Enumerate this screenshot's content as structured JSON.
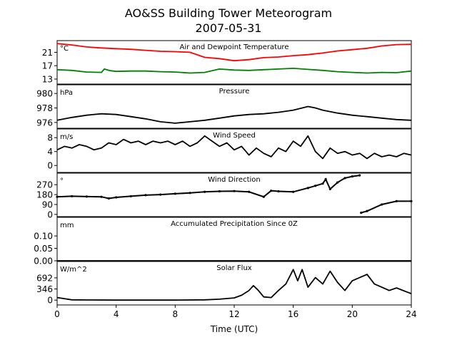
{
  "title": "AO&SS Building Tower Meteorogram",
  "subtitle": "2007-05-31",
  "xlabel": "Time (UTC)",
  "chart_data": [
    {
      "type": "line",
      "title": "Air and Dewpoint Temperature",
      "unit": "°C",
      "ylim": [
        11.5,
        24.5
      ],
      "yticks": [
        13,
        17,
        21
      ],
      "series": [
        {
          "color": "#ff0000",
          "points": [
            [
              0,
              23.6
            ],
            [
              1,
              23.2
            ],
            [
              2,
              22.6
            ],
            [
              3,
              22.3
            ],
            [
              4,
              22.1
            ],
            [
              5,
              21.9
            ],
            [
              6,
              21.6
            ],
            [
              7,
              21.3
            ],
            [
              8,
              21.2
            ],
            [
              9,
              21.0
            ],
            [
              10,
              19.5
            ],
            [
              11,
              19.1
            ],
            [
              12,
              18.5
            ],
            [
              13,
              18.8
            ],
            [
              14,
              19.4
            ],
            [
              15,
              19.6
            ],
            [
              16,
              20.0
            ],
            [
              17,
              20.3
            ],
            [
              18,
              20.8
            ],
            [
              19,
              21.4
            ],
            [
              20,
              21.8
            ],
            [
              21,
              22.2
            ],
            [
              22,
              22.9
            ],
            [
              23,
              23.3
            ],
            [
              24,
              23.4
            ]
          ]
        },
        {
          "color": "#008000",
          "points": [
            [
              0,
              15.8
            ],
            [
              1,
              15.6
            ],
            [
              2,
              15.1
            ],
            [
              3,
              15.0
            ],
            [
              3.2,
              16.0
            ],
            [
              3.6,
              15.5
            ],
            [
              4,
              15.3
            ],
            [
              5,
              15.4
            ],
            [
              6,
              15.4
            ],
            [
              7,
              15.2
            ],
            [
              8,
              15.1
            ],
            [
              9,
              14.8
            ],
            [
              10,
              15.0
            ],
            [
              11,
              16.0
            ],
            [
              12,
              15.7
            ],
            [
              13,
              15.6
            ],
            [
              14,
              15.8
            ],
            [
              15,
              16.0
            ],
            [
              16,
              16.2
            ],
            [
              17,
              15.9
            ],
            [
              18,
              15.6
            ],
            [
              19,
              15.2
            ],
            [
              20,
              15.0
            ],
            [
              21,
              14.8
            ],
            [
              22,
              15.0
            ],
            [
              23,
              14.9
            ],
            [
              24,
              15.4
            ]
          ]
        }
      ]
    },
    {
      "type": "line",
      "title": "Pressure",
      "unit": "hPa",
      "ylim": [
        975.2,
        981.2
      ],
      "yticks": [
        976,
        978,
        980
      ],
      "series": [
        {
          "color": "#000000",
          "points": [
            [
              0,
              976.3
            ],
            [
              1,
              976.7
            ],
            [
              2,
              977.0
            ],
            [
              3,
              977.2
            ],
            [
              4,
              977.1
            ],
            [
              5,
              976.8
            ],
            [
              6,
              976.5
            ],
            [
              7,
              976.1
            ],
            [
              8,
              975.9
            ],
            [
              9,
              976.1
            ],
            [
              10,
              976.3
            ],
            [
              11,
              976.6
            ],
            [
              12,
              976.9
            ],
            [
              13,
              977.1
            ],
            [
              14,
              977.2
            ],
            [
              15,
              977.4
            ],
            [
              16,
              977.7
            ],
            [
              17,
              978.2
            ],
            [
              17.5,
              978.0
            ],
            [
              18,
              977.7
            ],
            [
              19,
              977.3
            ],
            [
              20,
              977.0
            ],
            [
              21,
              976.8
            ],
            [
              22,
              976.6
            ],
            [
              23,
              976.4
            ],
            [
              24,
              976.3
            ]
          ]
        }
      ]
    },
    {
      "type": "line",
      "title": "Wind Speed",
      "unit": "m/s",
      "ylim": [
        -2,
        10.5
      ],
      "yticks": [
        0,
        4,
        8
      ],
      "series": [
        {
          "color": "#000000",
          "points": [
            [
              0,
              4.5
            ],
            [
              0.5,
              5.5
            ],
            [
              1,
              5.0
            ],
            [
              1.5,
              6.0
            ],
            [
              2,
              5.5
            ],
            [
              2.5,
              4.5
            ],
            [
              3,
              5.0
            ],
            [
              3.5,
              6.5
            ],
            [
              4,
              6.0
            ],
            [
              4.5,
              7.5
            ],
            [
              5,
              6.5
            ],
            [
              5.5,
              7.0
            ],
            [
              6,
              6.0
            ],
            [
              6.5,
              7.0
            ],
            [
              7,
              6.5
            ],
            [
              7.5,
              7.0
            ],
            [
              8,
              6.0
            ],
            [
              8.5,
              7.0
            ],
            [
              9,
              5.5
            ],
            [
              9.5,
              6.5
            ],
            [
              10,
              8.5
            ],
            [
              10.5,
              7.0
            ],
            [
              11,
              5.5
            ],
            [
              11.5,
              6.5
            ],
            [
              12,
              4.5
            ],
            [
              12.5,
              5.5
            ],
            [
              13,
              3.0
            ],
            [
              13.5,
              5.0
            ],
            [
              14,
              3.5
            ],
            [
              14.5,
              2.5
            ],
            [
              15,
              5.0
            ],
            [
              15.5,
              4.0
            ],
            [
              16,
              7.0
            ],
            [
              16.5,
              5.5
            ],
            [
              17,
              8.5
            ],
            [
              17.5,
              4.0
            ],
            [
              18,
              2.0
            ],
            [
              18.5,
              5.0
            ],
            [
              19,
              3.5
            ],
            [
              19.5,
              4.0
            ],
            [
              20,
              3.0
            ],
            [
              20.5,
              3.5
            ],
            [
              21,
              2.0
            ],
            [
              21.5,
              3.5
            ],
            [
              22,
              2.5
            ],
            [
              22.5,
              3.0
            ],
            [
              23,
              2.5
            ],
            [
              23.5,
              3.5
            ],
            [
              24,
              3.0
            ]
          ]
        }
      ]
    },
    {
      "type": "scatter",
      "title": "Wind Direction",
      "unit": "°",
      "ylim": [
        -20,
        375
      ],
      "yticks": [
        0,
        90,
        180,
        270
      ],
      "series": [
        {
          "color": "#000000",
          "points": [
            [
              0,
              160
            ],
            [
              1,
              165
            ],
            [
              2,
              162
            ],
            [
              3,
              160
            ],
            [
              3.5,
              145
            ],
            [
              4,
              155
            ],
            [
              5,
              165
            ],
            [
              6,
              175
            ],
            [
              7,
              180
            ],
            [
              8,
              188
            ],
            [
              9,
              195
            ],
            [
              10,
              205
            ],
            [
              11,
              210
            ],
            [
              12,
              212
            ],
            [
              13,
              205
            ],
            [
              14,
              160
            ],
            [
              14.5,
              215
            ],
            [
              15,
              210
            ],
            [
              16,
              205
            ],
            [
              17,
              240
            ],
            [
              17.5,
              260
            ],
            [
              18,
              280
            ],
            [
              18.2,
              320
            ],
            [
              18.5,
              230
            ],
            [
              19,
              290
            ],
            [
              19.5,
              330
            ],
            [
              20,
              345
            ],
            [
              20.5,
              355
            ],
            [
              20.6,
              15
            ],
            [
              21,
              30
            ],
            [
              22,
              90
            ],
            [
              23,
              120
            ],
            [
              24,
              120
            ]
          ]
        }
      ]
    },
    {
      "type": "line",
      "title": "Accumulated Precipitation Since 0Z",
      "unit": "mm",
      "ylim": [
        0,
        0.175
      ],
      "yticks": [
        0.0,
        0.05,
        0.1
      ],
      "tick_format": 2,
      "series": [
        {
          "color": "#000000",
          "points": [
            [
              0,
              0
            ],
            [
              24,
              0
            ]
          ]
        }
      ]
    },
    {
      "type": "line",
      "title": "Solar Flux",
      "unit": "W/m^2",
      "ylim": [
        -150,
        1200
      ],
      "yticks": [
        0,
        346,
        692
      ],
      "series": [
        {
          "color": "#000000",
          "points": [
            [
              0,
              80
            ],
            [
              1,
              10
            ],
            [
              2,
              5
            ],
            [
              4,
              0
            ],
            [
              6,
              0
            ],
            [
              8,
              0
            ],
            [
              10,
              10
            ],
            [
              11,
              30
            ],
            [
              12,
              70
            ],
            [
              12.5,
              150
            ],
            [
              13,
              300
            ],
            [
              13.3,
              450
            ],
            [
              13.6,
              320
            ],
            [
              14,
              100
            ],
            [
              14.5,
              80
            ],
            [
              15,
              300
            ],
            [
              15.5,
              500
            ],
            [
              16,
              950
            ],
            [
              16.3,
              600
            ],
            [
              16.6,
              950
            ],
            [
              17,
              400
            ],
            [
              17.5,
              700
            ],
            [
              18,
              500
            ],
            [
              18.5,
              900
            ],
            [
              19,
              550
            ],
            [
              19.5,
              300
            ],
            [
              20,
              600
            ],
            [
              20.5,
              700
            ],
            [
              21,
              800
            ],
            [
              21.5,
              500
            ],
            [
              22,
              400
            ],
            [
              22.5,
              300
            ],
            [
              23,
              380
            ],
            [
              24,
              200
            ]
          ]
        }
      ]
    }
  ],
  "x_axis": {
    "xlim": [
      0,
      24
    ],
    "ticks": [
      0,
      4,
      8,
      12,
      16,
      20,
      24
    ]
  }
}
